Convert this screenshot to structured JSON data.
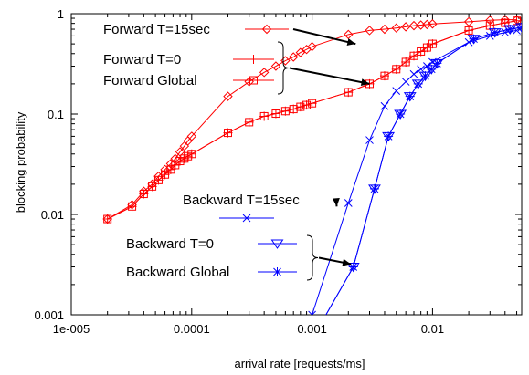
{
  "chart_data": {
    "type": "line",
    "xlabel": "arrival rate [requests/ms]",
    "ylabel": "blocking probability",
    "xscale": "log",
    "yscale": "log",
    "xlim": [
      1e-05,
      0.055
    ],
    "ylim": [
      0.001,
      1
    ],
    "xticks": [
      {
        "value": 1e-05,
        "label": "1e-005"
      },
      {
        "value": 0.0001,
        "label": "0.0001"
      },
      {
        "value": 0.001,
        "label": "0.001"
      },
      {
        "value": 0.01,
        "label": "0.01"
      }
    ],
    "yticks": [
      {
        "value": 0.001,
        "label": "0.001"
      },
      {
        "value": 0.01,
        "label": "0.01"
      },
      {
        "value": 0.1,
        "label": "0.1"
      },
      {
        "value": 1,
        "label": "1"
      }
    ],
    "grid": false,
    "colors": {
      "forward": "#ff0000",
      "backward": "#0000ff"
    },
    "series": [
      {
        "name": "Forward T=15sec",
        "color": "#ff0000",
        "marker": "diamond",
        "x": [
          2e-05,
          3.2e-05,
          4e-05,
          4.7e-05,
          5.3e-05,
          6e-05,
          6.7e-05,
          7.3e-05,
          8e-05,
          8.7e-05,
          9.3e-05,
          0.0001,
          0.0002,
          0.0003,
          0.0004,
          0.0005,
          0.0006,
          0.0007,
          0.0008,
          0.0009,
          0.001,
          0.002,
          0.003,
          0.004,
          0.005,
          0.006,
          0.007,
          0.008,
          0.009,
          0.01,
          0.02,
          0.03,
          0.04,
          0.05
        ],
        "y": [
          0.009,
          0.0125,
          0.017,
          0.02,
          0.024,
          0.028,
          0.032,
          0.036,
          0.042,
          0.048,
          0.054,
          0.06,
          0.15,
          0.21,
          0.26,
          0.3,
          0.34,
          0.37,
          0.41,
          0.44,
          0.47,
          0.62,
          0.68,
          0.7,
          0.72,
          0.74,
          0.76,
          0.77,
          0.78,
          0.79,
          0.83,
          0.86,
          0.87,
          0.87
        ]
      },
      {
        "name": "Forward T=0",
        "color": "#ff0000",
        "marker": "plus",
        "x": [
          2e-05,
          3.2e-05,
          4e-05,
          4.7e-05,
          5.3e-05,
          6e-05,
          6.7e-05,
          7.3e-05,
          8e-05,
          8.7e-05,
          9.3e-05,
          0.0001,
          0.0002,
          0.0003,
          0.0004,
          0.0005,
          0.0006,
          0.0007,
          0.0008,
          0.0009,
          0.001,
          0.002,
          0.003,
          0.004,
          0.005,
          0.006,
          0.007,
          0.008,
          0.009,
          0.01,
          0.02,
          0.03,
          0.04,
          0.05
        ],
        "y": [
          0.009,
          0.012,
          0.016,
          0.019,
          0.022,
          0.025,
          0.028,
          0.031,
          0.034,
          0.036,
          0.038,
          0.04,
          0.065,
          0.083,
          0.095,
          0.101,
          0.107,
          0.112,
          0.118,
          0.123,
          0.128,
          0.165,
          0.2,
          0.24,
          0.28,
          0.33,
          0.38,
          0.42,
          0.46,
          0.5,
          0.68,
          0.76,
          0.81,
          0.85
        ]
      },
      {
        "name": "Forward Global",
        "color": "#ff0000",
        "marker": "square",
        "x": [
          2e-05,
          3.2e-05,
          4e-05,
          4.7e-05,
          5.3e-05,
          6e-05,
          6.7e-05,
          7.3e-05,
          8e-05,
          8.7e-05,
          9.3e-05,
          0.0001,
          0.0002,
          0.0003,
          0.0004,
          0.0005,
          0.0006,
          0.0007,
          0.0008,
          0.0009,
          0.001,
          0.002,
          0.003,
          0.004,
          0.005,
          0.006,
          0.007,
          0.008,
          0.009,
          0.01,
          0.02,
          0.03,
          0.04,
          0.05
        ],
        "y": [
          0.009,
          0.012,
          0.016,
          0.019,
          0.022,
          0.025,
          0.028,
          0.031,
          0.034,
          0.036,
          0.038,
          0.04,
          0.065,
          0.083,
          0.095,
          0.101,
          0.107,
          0.112,
          0.118,
          0.123,
          0.128,
          0.165,
          0.2,
          0.24,
          0.28,
          0.33,
          0.38,
          0.42,
          0.46,
          0.5,
          0.68,
          0.76,
          0.81,
          0.85
        ]
      },
      {
        "name": "Backward T=15sec",
        "color": "#0000ff",
        "marker": "x",
        "x": [
          0.001,
          0.002,
          0.003,
          0.004,
          0.005,
          0.006,
          0.007,
          0.008,
          0.009,
          0.01,
          0.02,
          0.03,
          0.04,
          0.05
        ],
        "y": [
          0.001,
          0.013,
          0.055,
          0.12,
          0.17,
          0.21,
          0.25,
          0.28,
          0.3,
          0.33,
          0.52,
          0.6,
          0.65,
          0.68
        ]
      },
      {
        "name": "Backward T=0",
        "color": "#0000ff",
        "marker": "triangle-down",
        "x": [
          0.0011,
          0.0022,
          0.0033,
          0.0043,
          0.0054,
          0.0065,
          0.0076,
          0.0087,
          0.0098,
          0.0109,
          0.022,
          0.033,
          0.044,
          0.055
        ],
        "y": [
          0.0007,
          0.003,
          0.018,
          0.06,
          0.1,
          0.15,
          0.2,
          0.24,
          0.28,
          0.32,
          0.56,
          0.65,
          0.7,
          0.73
        ]
      },
      {
        "name": "Backward Global",
        "color": "#0000ff",
        "marker": "star",
        "x": [
          0.0011,
          0.0022,
          0.0033,
          0.0043,
          0.0054,
          0.0065,
          0.0076,
          0.0087,
          0.0098,
          0.0109,
          0.022,
          0.033,
          0.044,
          0.055
        ],
        "y": [
          0.0007,
          0.003,
          0.018,
          0.06,
          0.1,
          0.15,
          0.2,
          0.24,
          0.28,
          0.32,
          0.56,
          0.65,
          0.7,
          0.73
        ]
      }
    ],
    "legend": [
      {
        "label": "Forward T=15sec",
        "color": "#ff0000",
        "marker": "diamond"
      },
      {
        "label": "Forward T=0",
        "color": "#ff0000",
        "marker": "plus"
      },
      {
        "label": "Forward Global",
        "color": "#ff0000",
        "marker": "square"
      },
      {
        "label": "Backward T=15sec",
        "color": "#0000ff",
        "marker": "x"
      },
      {
        "label": "Backward T=0",
        "color": "#0000ff",
        "marker": "triangle-down"
      },
      {
        "label": "Backward Global",
        "color": "#0000ff",
        "marker": "star"
      }
    ],
    "annotations": [
      {
        "type": "arrow",
        "from_legend": "Forward T=15sec",
        "to_series": "Forward T=15sec",
        "to": [
          0.0023,
          0.5
        ]
      },
      {
        "type": "brace-arrow",
        "from_legend": [
          "Forward T=0",
          "Forward Global"
        ],
        "to": [
          0.003,
          0.2
        ]
      },
      {
        "type": "arrow",
        "from_legend": "Backward T=15sec",
        "to": [
          0.0016,
          0.012
        ]
      },
      {
        "type": "brace-arrow",
        "from_legend": [
          "Backward T=0",
          "Backward Global"
        ],
        "to": [
          0.0021,
          0.0032
        ]
      }
    ]
  }
}
